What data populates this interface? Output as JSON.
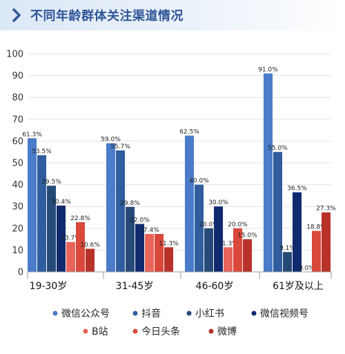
{
  "header": {
    "title": "不同年龄群体关注渠道情况"
  },
  "chart_data": {
    "type": "bar",
    "categories": [
      "19-30岁",
      "31-45岁",
      "46-60岁",
      "61岁及以上"
    ],
    "ylim": [
      0,
      100
    ],
    "yticks": [
      0,
      10,
      20,
      30,
      40,
      50,
      60,
      70,
      80,
      90,
      100
    ],
    "grid": true,
    "legend_position": "bottom",
    "series": [
      {
        "name": "微信公众号",
        "color": "#4a7cc9",
        "values": [
          61.3,
          59.0,
          62.5,
          91.0
        ],
        "labels": [
          "61.3%",
          "59.0%",
          "62.5%",
          "91.0%"
        ]
      },
      {
        "name": "抖音",
        "color": "#2f5d9e",
        "values": [
          53.5,
          55.7,
          40.0,
          55.0
        ],
        "labels": [
          "53.5%",
          "55.7%",
          "40.0%",
          "55.0%"
        ]
      },
      {
        "name": "小红书",
        "color": "#254a78",
        "values": [
          39.5,
          29.8,
          20.0,
          9.1
        ],
        "labels": [
          "39.5%",
          "29.8%",
          "20.0%",
          "9.1%"
        ]
      },
      {
        "name": "微信视频号",
        "color": "#0f2a6e",
        "values": [
          30.4,
          22.0,
          30.0,
          36.5
        ],
        "labels": [
          "30.4%",
          "22.0%",
          "30.0%",
          "36.5%"
        ]
      },
      {
        "name": "B站",
        "color": "#e8645a",
        "values": [
          13.7,
          17.4,
          11.3,
          0.0
        ],
        "labels": [
          "13.7%",
          "17.4%",
          "11.3%",
          "0.0%"
        ]
      },
      {
        "name": "今日头条",
        "color": "#d9483b",
        "values": [
          22.8,
          17.4,
          20.0,
          18.8
        ],
        "labels": [
          "22.8%",
          "",
          "20.0%",
          "18.8%"
        ]
      },
      {
        "name": "微博",
        "color": "#b8322a",
        "values": [
          10.6,
          11.3,
          15.0,
          27.3
        ],
        "labels": [
          "10.6%",
          "11.3%",
          "15.0%",
          "27.3%"
        ]
      }
    ]
  }
}
